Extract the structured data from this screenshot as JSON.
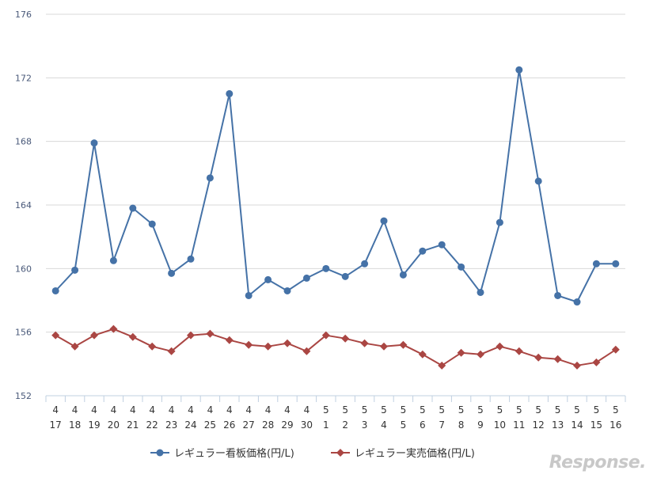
{
  "chart_data": {
    "type": "line",
    "categories_month": [
      "4",
      "4",
      "4",
      "4",
      "4",
      "4",
      "4",
      "4",
      "4",
      "4",
      "4",
      "4",
      "4",
      "4",
      "5",
      "5",
      "5",
      "5",
      "5",
      "5",
      "5",
      "5",
      "5",
      "5",
      "5",
      "5",
      "5",
      "5",
      "5",
      "5"
    ],
    "categories_day": [
      "17",
      "18",
      "19",
      "20",
      "21",
      "22",
      "23",
      "24",
      "25",
      "26",
      "27",
      "28",
      "29",
      "30",
      "1",
      "2",
      "3",
      "4",
      "5",
      "6",
      "7",
      "8",
      "9",
      "10",
      "11",
      "12",
      "13",
      "14",
      "15",
      "16"
    ],
    "series": [
      {
        "name": "レギュラー看板価格(円/L)",
        "color": "#4572a7",
        "marker": "circle",
        "values": [
          158.6,
          159.9,
          167.9,
          160.5,
          163.8,
          162.8,
          159.7,
          160.6,
          165.7,
          171.0,
          158.3,
          159.3,
          158.6,
          159.4,
          160.0,
          159.5,
          160.3,
          163.0,
          159.6,
          161.1,
          161.5,
          160.1,
          158.5,
          162.9,
          172.5,
          165.5,
          158.3,
          157.9,
          160.3,
          160.3
        ]
      },
      {
        "name": "レギュラー実売価格(円/L)",
        "color": "#aa4643",
        "marker": "diamond",
        "values": [
          155.8,
          155.1,
          155.8,
          156.2,
          155.7,
          155.1,
          154.8,
          155.8,
          155.9,
          155.5,
          155.2,
          155.1,
          155.3,
          154.8,
          155.8,
          155.6,
          155.3,
          155.1,
          155.2,
          154.6,
          153.9,
          154.7,
          154.6,
          155.1,
          154.8,
          154.4,
          154.3,
          153.9,
          154.1,
          154.9
        ]
      }
    ],
    "ylim": [
      152,
      176
    ],
    "yticks": [
      "152",
      "156",
      "160",
      "164",
      "168",
      "172",
      "176"
    ],
    "grid": "horizontal",
    "legend_position": "bottom-center"
  },
  "watermark": "Response."
}
